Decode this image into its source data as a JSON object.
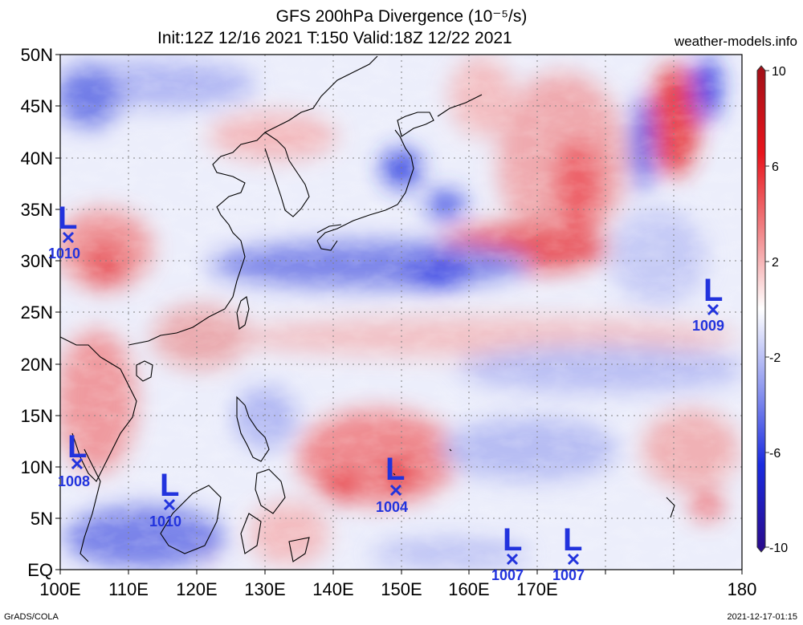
{
  "header": {
    "title": "GFS 200hPa Divergence (10⁻⁵/s)",
    "subtitle": "Init:12Z 12/16 2021 T:150 Valid:18Z 12/22 2021",
    "site": "weather-models.info"
  },
  "footer": {
    "credit": "GrADS/COLA",
    "timestamp": "2021-12-17-01:15"
  },
  "axes": {
    "lon_labels": [
      "100E",
      "110E",
      "120E",
      "130E",
      "140E",
      "150E",
      "160E",
      "170E",
      "180"
    ],
    "lat_labels": [
      "EQ",
      "5N",
      "10N",
      "15N",
      "20N",
      "25N",
      "30N",
      "35N",
      "40N",
      "45N",
      "50N"
    ]
  },
  "colorbar": {
    "labels": [
      "10",
      "6",
      "2",
      "-2",
      "-6",
      "-10"
    ]
  },
  "lows": [
    {
      "label": "L",
      "pressure": "1010"
    },
    {
      "label": "L",
      "pressure": "1008"
    },
    {
      "label": "L",
      "pressure": "1010"
    },
    {
      "label": "L",
      "pressure": "1004"
    },
    {
      "label": "L",
      "pressure": "1007"
    },
    {
      "label": "L",
      "pressure": "1007"
    },
    {
      "label": "L",
      "pressure": "1009"
    }
  ],
  "colors": {
    "strong_divergence": "#e8141c",
    "weak_divergence": "#f4a3a5",
    "neutral": "#ffffff",
    "weak_convergence": "#a4acf0",
    "strong_convergence": "#1a2be0",
    "low_marker": "#2233dd"
  }
}
